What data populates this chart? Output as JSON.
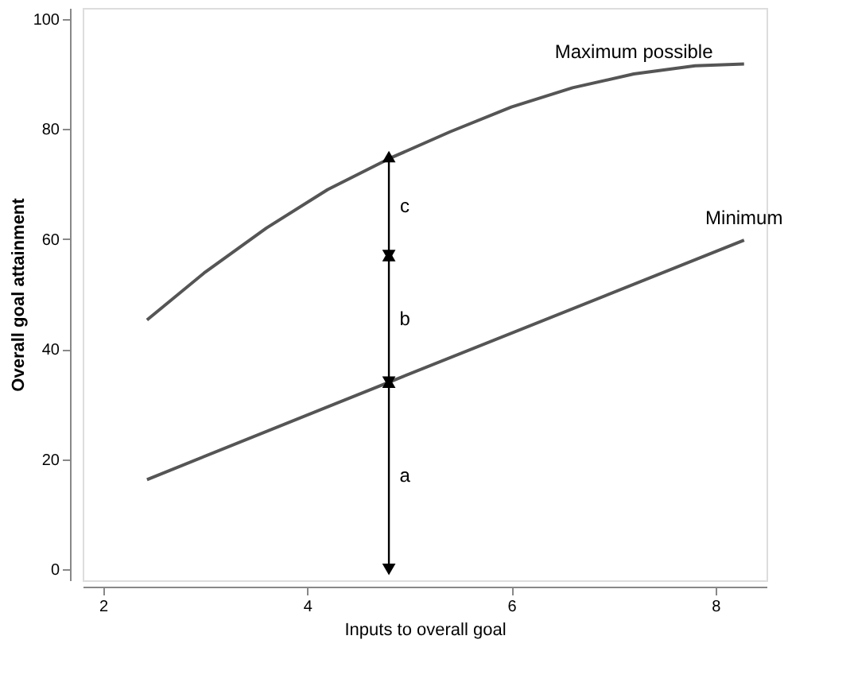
{
  "chart_data": {
    "type": "line",
    "xlabel": "Inputs to overall goal",
    "ylabel": "Overall goal attainment",
    "xlim": [
      1.8,
      8.5
    ],
    "xticks": [
      2,
      4,
      6,
      8
    ],
    "ylim": [
      -2,
      102
    ],
    "yticks": [
      0,
      20,
      40,
      60,
      80,
      100
    ],
    "grid": false,
    "series": [
      {
        "name": "Maximum possible",
        "color": "#555555",
        "x": [
          2.43,
          3.0,
          3.6,
          4.2,
          4.8,
          5.4,
          6.0,
          6.6,
          7.2,
          7.8,
          8.28
        ],
        "values": [
          45.3,
          54,
          62,
          69,
          74.6,
          79.5,
          84,
          87.5,
          90,
          91.5,
          91.8
        ]
      },
      {
        "name": "Minimum",
        "color": "#555555",
        "x": [
          2.43,
          4.8,
          8.28
        ],
        "values": [
          16.3,
          34,
          59.8
        ]
      },
      {
        "color": "#000000",
        "marker": "triangle",
        "x": [
          4.8,
          4.8,
          4.8,
          4.8
        ],
        "values": [
          0,
          34,
          57,
          75
        ]
      }
    ],
    "annotations": [
      "a",
      "b",
      "c"
    ]
  }
}
